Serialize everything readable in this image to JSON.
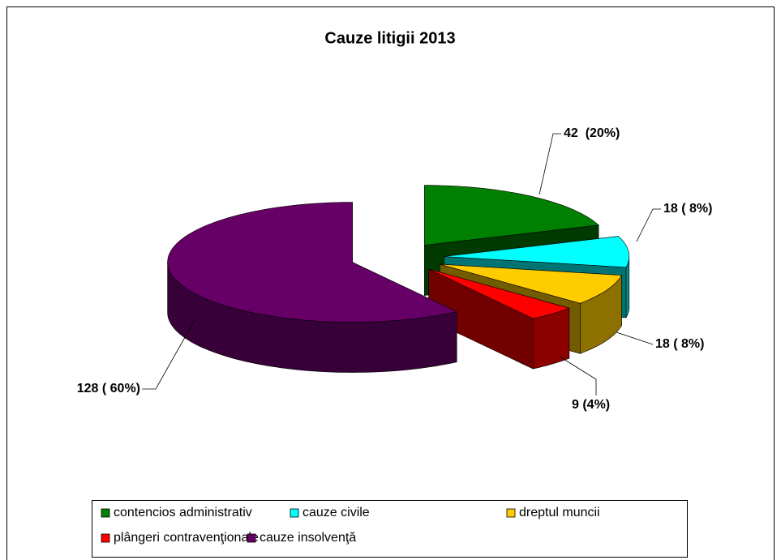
{
  "chart_data": {
    "type": "pie3d",
    "title": "Cauze litigii 2013",
    "categories": [
      "contencios administrativ",
      "cauze civile",
      "dreptul muncii",
      "plângeri contravenţionale",
      "cauze insolvenţă"
    ],
    "values": [
      42,
      18,
      18,
      9,
      128
    ],
    "value_labels": [
      "42  (20%)",
      "18 ( 8%)",
      "18 ( 8%)",
      "9 (4%)",
      "128 ( 60%)"
    ],
    "colors": [
      "#008000",
      "#00ffff",
      "#ffcc00",
      "#ff0000",
      "#660066"
    ],
    "legend": "bottom"
  }
}
